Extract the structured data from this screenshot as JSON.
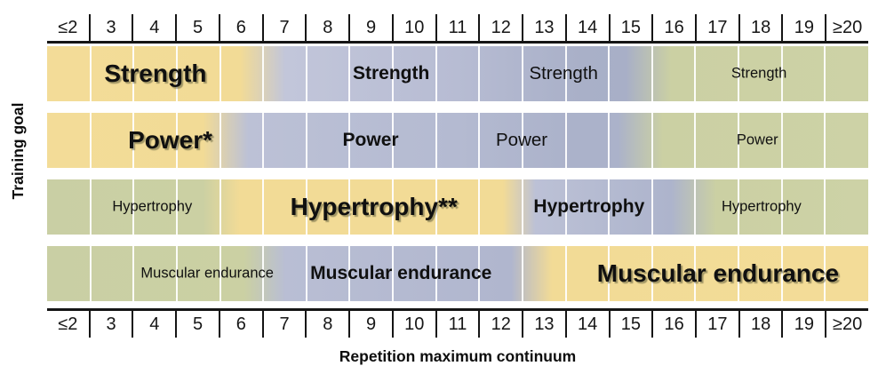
{
  "y_axis_label": "Training goal",
  "x_axis_label": "Repetition maximum continuum",
  "axis": {
    "labels": [
      "≤2",
      "3",
      "4",
      "5",
      "6",
      "7",
      "8",
      "9",
      "10",
      "11",
      "12",
      "13",
      "14",
      "15",
      "16",
      "17",
      "18",
      "19",
      "≥20"
    ]
  },
  "palette": {
    "yellow_optimal": "#f2db96",
    "lavender_moderate": "#b9bed4",
    "lavender_dark": "#a9b0c8",
    "olive_low": "#cbd0a3"
  },
  "rows": [
    {
      "id": "strength",
      "goal": "Strength",
      "stops": [
        {
          "p": 0,
          "c": "#f3dc98"
        },
        {
          "p": 23.5,
          "c": "#f2db96"
        },
        {
          "p": 29,
          "c": "#c2c6da"
        },
        {
          "p": 50,
          "c": "#b7bcd3"
        },
        {
          "p": 65,
          "c": "#a9b0c8"
        },
        {
          "p": 70.5,
          "c": "#a8afc7"
        },
        {
          "p": 76,
          "c": "#cbd0a3"
        },
        {
          "p": 100,
          "c": "#cdd2a6"
        }
      ],
      "labels": [
        {
          "text": "Strength",
          "style": "primary",
          "x": 13.2
        },
        {
          "text": "Strength",
          "style": "secondary",
          "x": 41.9
        },
        {
          "text": "Strength",
          "style": "tertiary",
          "x": 62.9
        },
        {
          "text": "Strength",
          "style": "small",
          "x": 86.7
        }
      ]
    },
    {
      "id": "power",
      "goal": "Power",
      "stops": [
        {
          "p": 0,
          "c": "#f3dc98"
        },
        {
          "p": 19,
          "c": "#f2db96"
        },
        {
          "p": 24.5,
          "c": "#bcc1d6"
        },
        {
          "p": 50,
          "c": "#b4bad1"
        },
        {
          "p": 64,
          "c": "#abb2ca"
        },
        {
          "p": 69.5,
          "c": "#abb2ca"
        },
        {
          "p": 75,
          "c": "#cbd0a3"
        },
        {
          "p": 100,
          "c": "#cdd2a6"
        }
      ],
      "labels": [
        {
          "text": "Power*",
          "style": "primary",
          "x": 15.0
        },
        {
          "text": "Power",
          "style": "secondary",
          "x": 39.4
        },
        {
          "text": "Power",
          "style": "tertiary",
          "x": 57.8
        },
        {
          "text": "Power",
          "style": "small",
          "x": 86.5
        }
      ]
    },
    {
      "id": "hypertrophy",
      "goal": "Hypertrophy",
      "stops": [
        {
          "p": 0,
          "c": "#c9cfa4"
        },
        {
          "p": 19,
          "c": "#cbd0a3"
        },
        {
          "p": 23.5,
          "c": "#f2db96"
        },
        {
          "p": 55.5,
          "c": "#f2db96"
        },
        {
          "p": 59.5,
          "c": "#bcc1d6"
        },
        {
          "p": 76,
          "c": "#adb4cc"
        },
        {
          "p": 81.5,
          "c": "#cbd0a3"
        },
        {
          "p": 100,
          "c": "#cdd2a6"
        }
      ],
      "labels": [
        {
          "text": "Hypertrophy",
          "style": "small",
          "x": 12.8
        },
        {
          "text": "Hypertrophy**",
          "style": "primary",
          "x": 39.8
        },
        {
          "text": "Hypertrophy",
          "style": "secondary",
          "x": 66.0
        },
        {
          "text": "Hypertrophy",
          "style": "small",
          "x": 87.0
        }
      ]
    },
    {
      "id": "muscular-endurance",
      "goal": "Muscular endurance",
      "stops": [
        {
          "p": 0,
          "c": "#c9cfa4"
        },
        {
          "p": 24,
          "c": "#cbd0a3"
        },
        {
          "p": 29,
          "c": "#b9bed4"
        },
        {
          "p": 56.5,
          "c": "#b0b6ce"
        },
        {
          "p": 61.5,
          "c": "#f2db96"
        },
        {
          "p": 100,
          "c": "#f3dc98"
        }
      ],
      "labels": [
        {
          "text": "Muscular endurance",
          "style": "small",
          "x": 19.5
        },
        {
          "text": "Muscular endurance",
          "style": "secondary",
          "x": 43.1
        },
        {
          "text": "Muscular endurance",
          "style": "primary",
          "x": 81.7
        }
      ]
    }
  ],
  "chart_data": {
    "type": "heatmap",
    "title": "Repetition maximum continuum",
    "xlabel": "Repetition maximum continuum",
    "ylabel": "Training goal",
    "x_categories": [
      "≤2",
      "3",
      "4",
      "5",
      "6",
      "7",
      "8",
      "9",
      "10",
      "11",
      "12",
      "13",
      "14",
      "15",
      "16",
      "17",
      "18",
      "19",
      "≥20"
    ],
    "y_categories": [
      "Strength",
      "Power",
      "Hypertrophy",
      "Muscular endurance"
    ],
    "legend": "none (emphasis encoded by color and label size: yellow + largest bold label = most effective range; lavender + bold/regular label = moderately effective; olive green + smallest label = least emphasized)",
    "grid": "white vertical gridlines at every rep column boundary",
    "series": [
      {
        "name": "Strength",
        "bands": [
          {
            "reps": "≤2–6",
            "emphasis": "highest",
            "color": "#f2db96",
            "label_style": "large bold with shadow"
          },
          {
            "reps": "7–12",
            "emphasis": "high",
            "color": "#b9bed4",
            "label_style": "bold"
          },
          {
            "reps": "13–15",
            "emphasis": "moderate",
            "color": "#a9b0c8",
            "label_style": "regular"
          },
          {
            "reps": "16–≥20",
            "emphasis": "low",
            "color": "#cbd0a3",
            "label_style": "small"
          }
        ]
      },
      {
        "name": "Power*",
        "bands": [
          {
            "reps": "≤2–5",
            "emphasis": "highest",
            "color": "#f2db96",
            "label_style": "large bold with shadow"
          },
          {
            "reps": "6–11",
            "emphasis": "high",
            "color": "#bcc1d6",
            "label_style": "bold"
          },
          {
            "reps": "12–15",
            "emphasis": "moderate",
            "color": "#abb2ca",
            "label_style": "regular"
          },
          {
            "reps": "16–≥20",
            "emphasis": "low",
            "color": "#cbd0a3",
            "label_style": "small"
          }
        ]
      },
      {
        "name": "Hypertrophy**",
        "bands": [
          {
            "reps": "≤2–5",
            "emphasis": "low",
            "color": "#cbd0a3",
            "label_style": "small"
          },
          {
            "reps": "6–12",
            "emphasis": "highest",
            "color": "#f2db96",
            "label_style": "large bold with shadow"
          },
          {
            "reps": "13–16",
            "emphasis": "moderate",
            "color": "#bcc1d6",
            "label_style": "bold"
          },
          {
            "reps": "17–≥20",
            "emphasis": "low",
            "color": "#cbd0a3",
            "label_style": "small"
          }
        ]
      },
      {
        "name": "Muscular endurance",
        "bands": [
          {
            "reps": "≤2–6",
            "emphasis": "low",
            "color": "#cbd0a3",
            "label_style": "small"
          },
          {
            "reps": "7–12",
            "emphasis": "high",
            "color": "#b9bed4",
            "label_style": "bold"
          },
          {
            "reps": "13–≥20",
            "emphasis": "highest",
            "color": "#f2db96",
            "label_style": "large bold with shadow"
          }
        ]
      }
    ]
  }
}
